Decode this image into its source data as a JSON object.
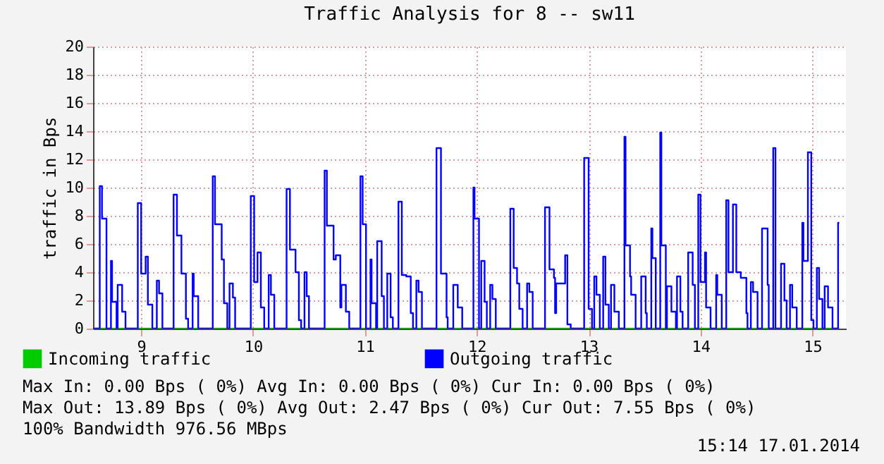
{
  "chart_data": {
    "type": "step",
    "title": "Traffic Analysis for 8 -- sw11",
    "ylabel": "traffic in Bps",
    "xlim": [
      8.57,
      15.3
    ],
    "xticks": [
      9,
      10,
      11,
      12,
      13,
      14,
      15
    ],
    "ylim": [
      0,
      20
    ],
    "yticks": [
      0,
      2,
      4,
      6,
      8,
      10,
      12,
      14,
      16,
      18,
      20
    ],
    "grid": true,
    "legend": "bottom",
    "marker": "none",
    "line_style": "solid",
    "annotations": [
      "Max In:   0.00  Bps ( 0%)  Avg In:   0.00  Bps ( 0%)  Cur In:   0.00  Bps ( 0%)",
      "Max Out: 13.89  Bps ( 0%)  Avg Out:  2.47  Bps ( 0%)  Cur Out:  7.55  Bps ( 0%)",
      "100% Bandwidth 976.56 MBps",
      "15:14 17.01.2014"
    ],
    "series": [
      {
        "name": "Incoming traffic",
        "color": "#00cc00",
        "x": [
          8.57,
          15.24
        ],
        "values": [
          0,
          0
        ]
      },
      {
        "name": "Outgoing traffic",
        "color": "#0000ff",
        "x": [
          8.57,
          8.63,
          8.65,
          8.69,
          8.73,
          8.74,
          8.78,
          8.79,
          8.83,
          8.86,
          8.97,
          9.0,
          9.04,
          9.06,
          9.1,
          9.14,
          9.16,
          9.19,
          9.29,
          9.32,
          9.36,
          9.4,
          9.42,
          9.46,
          9.47,
          9.51,
          9.64,
          9.66,
          9.72,
          9.74,
          9.77,
          9.79,
          9.82,
          9.84,
          9.98,
          10.01,
          10.04,
          10.07,
          10.1,
          10.14,
          10.16,
          10.19,
          10.3,
          10.33,
          10.38,
          10.41,
          10.43,
          10.46,
          10.48,
          10.5,
          10.64,
          10.66,
          10.72,
          10.74,
          10.78,
          10.79,
          10.83,
          10.86,
          10.96,
          10.98,
          11.01,
          11.05,
          11.06,
          11.1,
          11.11,
          11.15,
          11.17,
          11.2,
          11.23,
          11.25,
          11.3,
          11.33,
          11.37,
          11.41,
          11.43,
          11.46,
          11.48,
          11.51,
          11.64,
          11.68,
          11.73,
          11.74,
          11.79,
          11.83,
          11.87,
          11.97,
          11.98,
          12.02,
          12.04,
          12.07,
          12.09,
          12.12,
          12.14,
          12.17,
          12.3,
          12.33,
          12.36,
          12.38,
          12.41,
          12.45,
          12.47,
          12.5,
          12.61,
          12.65,
          12.69,
          12.7,
          12.71,
          12.79,
          12.81,
          12.84,
          12.96,
          13.0,
          13.03,
          13.05,
          13.07,
          13.1,
          13.13,
          13.15,
          13.18,
          13.2,
          13.23,
          13.27,
          13.32,
          13.33,
          13.37,
          13.38,
          13.42,
          13.47,
          13.51,
          13.52,
          13.56,
          13.57,
          13.6,
          13.64,
          13.65,
          13.69,
          13.7,
          13.74,
          13.78,
          13.79,
          13.82,
          13.84,
          13.89,
          13.93,
          13.95,
          13.98,
          14.0,
          14.04,
          14.05,
          14.09,
          14.14,
          14.15,
          14.19,
          14.23,
          14.25,
          14.29,
          14.32,
          14.36,
          14.41,
          14.42,
          14.45,
          14.47,
          14.51,
          14.55,
          14.6,
          14.61,
          14.65,
          14.67,
          14.72,
          14.75,
          14.77,
          14.8,
          14.82,
          14.86,
          14.91,
          14.92,
          14.96,
          14.99,
          15.01,
          15.04,
          15.06,
          15.09,
          15.11,
          15.14,
          15.18,
          15.23,
          15.24
        ],
        "values": [
          0,
          10.1,
          7.8,
          0,
          4.8,
          1.9,
          0,
          3.1,
          1.2,
          0,
          8.9,
          3.9,
          5.1,
          1.7,
          0,
          3.4,
          2.5,
          0,
          9.5,
          6.6,
          3.9,
          0.7,
          0,
          3.9,
          2.3,
          0,
          10.8,
          7.4,
          4.9,
          1.8,
          0,
          3.2,
          2.2,
          0,
          9.4,
          3.3,
          5.4,
          1.5,
          0,
          3.8,
          2.4,
          0,
          9.9,
          5.6,
          4.0,
          0.6,
          0,
          4.0,
          2.3,
          0,
          11.2,
          7.3,
          4.9,
          5.2,
          1.5,
          3.1,
          1.2,
          0,
          10.8,
          7.4,
          0,
          4.9,
          1.8,
          0,
          6.2,
          2.3,
          0,
          3.9,
          0.8,
          0,
          9.0,
          3.8,
          3.7,
          1.1,
          0,
          3.4,
          2.6,
          0,
          12.8,
          3.9,
          0.8,
          0,
          3.1,
          1.5,
          0,
          10.0,
          7.8,
          0,
          4.8,
          1.9,
          0,
          3.1,
          2.1,
          0,
          8.5,
          4.3,
          3.2,
          1.4,
          0,
          3.2,
          2.6,
          0,
          8.6,
          4.2,
          3.6,
          1.1,
          3.2,
          5.2,
          0.3,
          0,
          12.1,
          1.4,
          0,
          3.7,
          2.4,
          0,
          5.1,
          1.7,
          0,
          3.1,
          1.2,
          0,
          13.6,
          5.9,
          3.7,
          2.4,
          0,
          3.7,
          1.1,
          0,
          7.1,
          5.0,
          0,
          13.9,
          5.9,
          0,
          3.0,
          1.2,
          0,
          3.7,
          1.2,
          0,
          5.4,
          3.1,
          0,
          9.5,
          3.3,
          5.4,
          1.5,
          0,
          3.8,
          2.4,
          0,
          9.1,
          4.0,
          8.8,
          4.0,
          3.6,
          1.1,
          0,
          3.3,
          2.6,
          0,
          7.1,
          3.1,
          0,
          12.8,
          0,
          4.6,
          2.0,
          0,
          3.1,
          1.5,
          0,
          7.5,
          4.8,
          12.5,
          0.6,
          0,
          4.3,
          2.1,
          0,
          3.0,
          1.5,
          0,
          7.5,
          7.5
        ]
      }
    ]
  }
}
